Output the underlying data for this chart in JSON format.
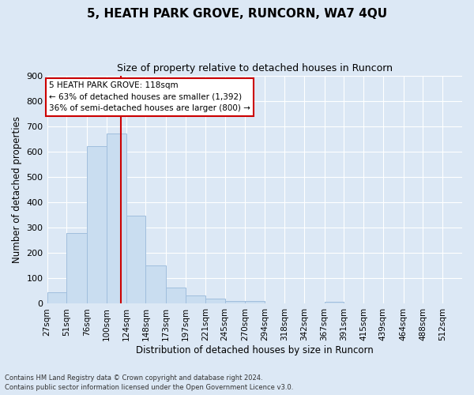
{
  "title": "5, HEATH PARK GROVE, RUNCORN, WA7 4QU",
  "subtitle": "Size of property relative to detached houses in Runcorn",
  "xlabel": "Distribution of detached houses by size in Runcorn",
  "ylabel": "Number of detached properties",
  "bin_labels": [
    "27sqm",
    "51sqm",
    "76sqm",
    "100sqm",
    "124sqm",
    "148sqm",
    "173sqm",
    "197sqm",
    "221sqm",
    "245sqm",
    "270sqm",
    "294sqm",
    "318sqm",
    "342sqm",
    "367sqm",
    "391sqm",
    "415sqm",
    "439sqm",
    "464sqm",
    "488sqm",
    "512sqm"
  ],
  "bar_heights": [
    45,
    280,
    620,
    670,
    348,
    150,
    65,
    32,
    20,
    12,
    10,
    0,
    0,
    0,
    8,
    0,
    0,
    0,
    0,
    0,
    0
  ],
  "bar_color": "#c9ddf0",
  "bar_edge_color": "#a0bedd",
  "property_line_x": 118,
  "bin_edges": [
    27,
    51,
    76,
    100,
    124,
    148,
    173,
    197,
    221,
    245,
    270,
    294,
    318,
    342,
    367,
    391,
    415,
    439,
    464,
    488,
    512,
    536
  ],
  "ylim": [
    0,
    900
  ],
  "yticks": [
    0,
    100,
    200,
    300,
    400,
    500,
    600,
    700,
    800,
    900
  ],
  "annotation_title": "5 HEATH PARK GROVE: 118sqm",
  "annotation_line1": "← 63% of detached houses are smaller (1,392)",
  "annotation_line2": "36% of semi-detached houses are larger (800) →",
  "red_line_color": "#cc0000",
  "footer_line1": "Contains HM Land Registry data © Crown copyright and database right 2024.",
  "footer_line2": "Contains public sector information licensed under the Open Government Licence v3.0.",
  "background_color": "#dce8f5",
  "plot_bg_color": "#dce8f5",
  "grid_color": "#ffffff"
}
